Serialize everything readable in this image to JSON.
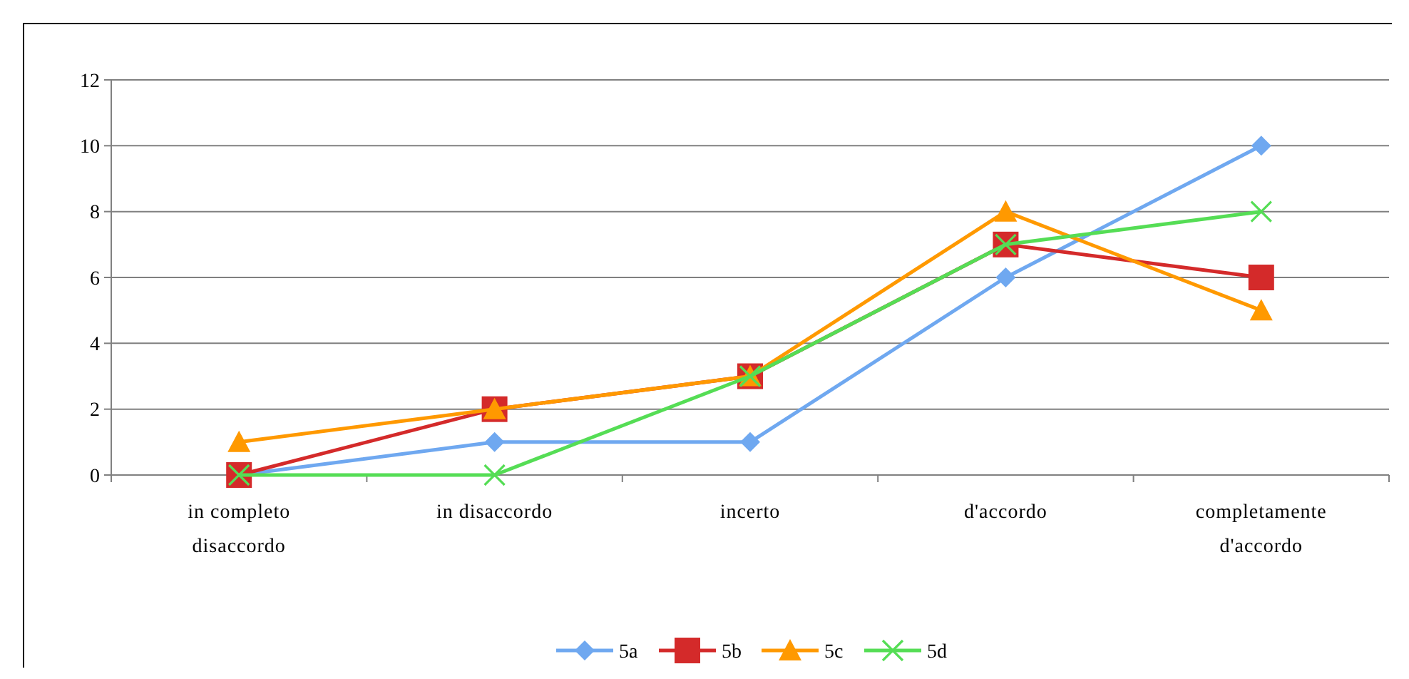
{
  "chart_data": {
    "type": "line",
    "categories": [
      "in completo disaccordo",
      "in disaccordo",
      "incerto",
      "d'accordo",
      "completamente d'accordo"
    ],
    "series": [
      {
        "name": "5a",
        "color": "#6fa8f0",
        "marker": "diamond",
        "values": [
          0,
          1,
          1,
          6,
          10
        ]
      },
      {
        "name": "5b",
        "color": "#d42a2a",
        "marker": "square",
        "values": [
          0,
          2,
          3,
          7,
          6
        ]
      },
      {
        "name": "5c",
        "color": "#ff9900",
        "marker": "triangle",
        "values": [
          1,
          2,
          3,
          8,
          5
        ]
      },
      {
        "name": "5d",
        "color": "#55dd55",
        "marker": "cross",
        "values": [
          0,
          0,
          3,
          7,
          8
        ]
      }
    ],
    "ylim": [
      0,
      12
    ],
    "yticks": [
      0,
      2,
      4,
      6,
      8,
      10,
      12
    ],
    "grid": "y",
    "legend": "bottom"
  }
}
